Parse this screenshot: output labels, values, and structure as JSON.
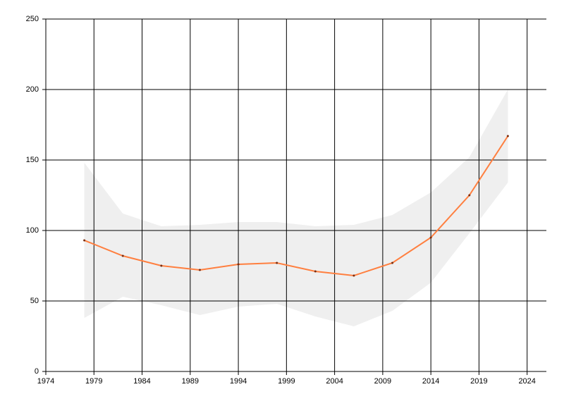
{
  "chart_data": {
    "type": "line",
    "x": [
      1978,
      1982,
      1986,
      1990,
      1994,
      1998,
      2002,
      2006,
      2010,
      2014,
      2018,
      2022
    ],
    "series": [
      {
        "color": "#ff7f3f",
        "values": [
          93,
          82,
          75,
          72,
          76,
          77,
          71,
          68,
          77,
          95,
          125,
          167
        ]
      }
    ],
    "band": {
      "color": "#efefef",
      "upper": [
        148,
        112,
        103,
        104,
        106,
        106,
        103,
        104,
        111,
        127,
        152,
        200
      ],
      "lower": [
        38,
        53,
        47,
        40,
        46,
        48,
        39,
        32,
        43,
        63,
        98,
        134
      ]
    },
    "marker_color": "#7a2e10",
    "xlim": [
      1974,
      2026
    ],
    "xticks": [
      1974,
      1979,
      1984,
      1989,
      1994,
      1999,
      2004,
      2009,
      2014,
      2019,
      2024
    ],
    "ylim": [
      0,
      250
    ],
    "yticks": [
      0,
      50,
      100,
      150,
      200,
      250
    ],
    "grid": true
  }
}
